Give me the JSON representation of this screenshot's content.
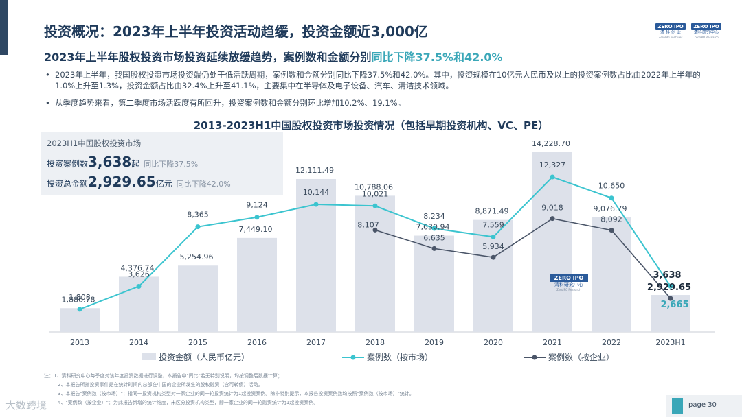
{
  "header": {
    "title": "投资概况：2023年上半年投资活动趋缓，投资金额近3,000亿",
    "subtitle_main": "2023年上半年股权投资市场投资延续放缓趋势，案例数和金额分别",
    "subtitle_highlight": "同比下降37.5%和42.0%"
  },
  "logos": [
    {
      "box": "ZERO IPO",
      "cn": "清 科 创 业",
      "en": "ZeroIPO Ventures"
    },
    {
      "box": "ZERO IPO",
      "cn": "清科研究中心",
      "en": "ZeroIPO Research"
    }
  ],
  "bullets": [
    "2023年上半年，我国股权投资市场投资端仍处于低活跃周期，案例数和金额分别同比下降37.5%和42.0%。其中，投资规模在10亿元人民币及以上的投资案例数占比由2022年上半年的1.0%上升至1.3%，投资金额占比由32.4%上升至41.1%，主要集中在半导体及电子设备、汽车、清洁技术领域。",
    "从季度趋势来看，第二季度市场活跃度有所回升，投资案例数和金额分别环比增加10.2%、19.1%。"
  ],
  "summary": {
    "title": "2023H1中国股权投资市场",
    "cases_label": "投资案例数",
    "cases_value": "3,638",
    "cases_unit": "起",
    "cases_change": "同比下降37.5%",
    "amount_label": "投资总金额",
    "amount_value": "2,929.65",
    "amount_unit": "亿元",
    "amount_change": "同比下降42.0%"
  },
  "chart_watermark": {
    "box": "ZERO IPO",
    "cn": "清科研究中心",
    "en": "ZeroIPO Research"
  },
  "chart_data": {
    "type": "bar",
    "title": "2013-2023H1中国股权投资市场投资情况（包括早期投资机构、VC、PE）",
    "categories": [
      "2013",
      "2014",
      "2015",
      "2016",
      "2017",
      "2018",
      "2019",
      "2020",
      "2021",
      "2022",
      "2023H1"
    ],
    "series": [
      {
        "name": "投资金额（人民币亿元）",
        "type": "bar",
        "color": "#dde1ea",
        "values": [
          1886.78,
          4376.74,
          5254.96,
          7449.1,
          12111.49,
          10788.06,
          7630.94,
          8871.49,
          14228.7,
          9076.79,
          2929.65
        ],
        "labels": [
          "1,886.78",
          "4,376.74",
          "5,254.96",
          "7,449.10",
          "12,111.49",
          "10,788.06",
          "7,630.94",
          "8,871.49",
          "14,228.70",
          "9,076.79",
          "2,929.65"
        ]
      },
      {
        "name": "案例数（按市场）",
        "type": "line",
        "color": "#3bc4cf",
        "values": [
          1808,
          3626,
          8365,
          9124,
          10144,
          10021,
          8234,
          7559,
          12327,
          10650,
          3638
        ],
        "labels": [
          "1,808",
          "3,626",
          "8,365",
          "9,124",
          "10,144",
          "10,021",
          "8,234",
          "7,559",
          "12,327",
          "10,650",
          "3,638"
        ]
      },
      {
        "name": "案例数（按企业）",
        "type": "line",
        "color": "#4a5568",
        "values": [
          null,
          null,
          null,
          null,
          null,
          8107,
          6635,
          5934,
          9018,
          8092,
          2665
        ],
        "labels": [
          "",
          "",
          "",
          "",
          "",
          "8,107",
          "6,635",
          "5,934",
          "9,018",
          "8,092",
          "2,665"
        ]
      }
    ],
    "legend_position": "bottom",
    "grid": false
  },
  "notes": [
    "注：1、清科研究中心每季度对该年度投资数据进行调整，本报告中\"同比\"若无特别说明，均按调整后数据计算；",
    "2、本报告所指投资事件是在统计时间内总部在中国的企业所发生的股权融资（含可转债）活动。",
    "3、本报告\"案例数（按市场）\"：指同一投资机构类型对一家企业的同一轮投资统计为1起投资案例。除非特别提示，本报告投资案例数均按照\"案例数（按市场）\"统计。",
    "4、\"案例数（按企业）\"：为此报告新增的统计维度，未区分投资机构类型，即一家企业的同一轮融资统计为1起投资案例。"
  ],
  "watermark": "大数跨境",
  "page": "page  30"
}
